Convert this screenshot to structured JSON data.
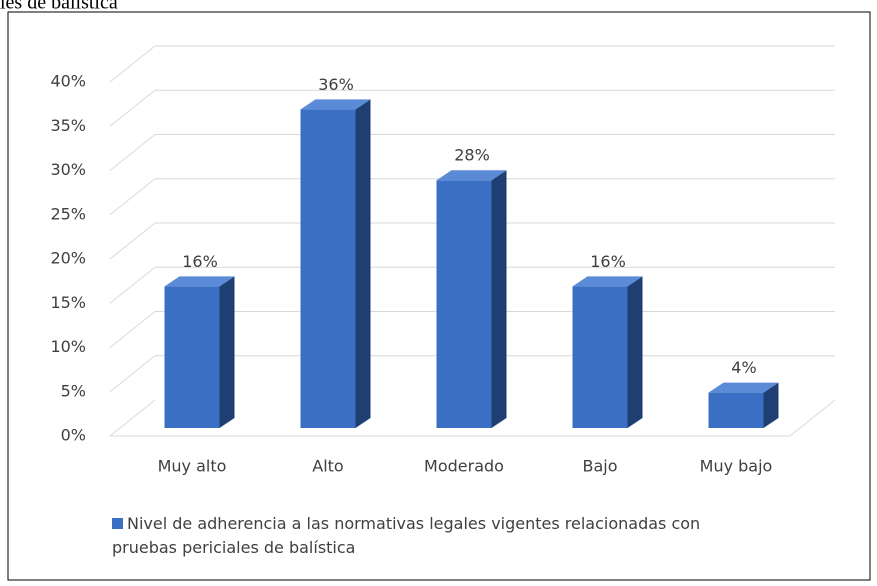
{
  "chart_data": {
    "type": "bar3d",
    "caption": "les de balística",
    "categories": [
      "Muy alto",
      "Alto",
      "Moderado",
      "Bajo",
      "Muy bajo"
    ],
    "series": [
      {
        "name": "Nivel de adherencia a las normativas legales vigentes relacionadas con pruebas periciales de balística",
        "color": "#3a6fc4",
        "values": [
          16,
          36,
          28,
          16,
          4
        ],
        "value_labels": [
          "16%",
          "36%",
          "28%",
          "16%",
          "4%"
        ]
      }
    ],
    "ylim": [
      0,
      40
    ],
    "yticks": [
      {
        "value": 0,
        "label": "0%"
      },
      {
        "value": 5,
        "label": "5%"
      },
      {
        "value": 10,
        "label": "10%"
      },
      {
        "value": 15,
        "label": "15%"
      },
      {
        "value": 20,
        "label": "20%"
      },
      {
        "value": 25,
        "label": "25%"
      },
      {
        "value": 30,
        "label": "30%"
      },
      {
        "value": 35,
        "label": "35%"
      },
      {
        "value": 40,
        "label": "40%"
      }
    ],
    "grid": true,
    "legend": "bottom"
  }
}
